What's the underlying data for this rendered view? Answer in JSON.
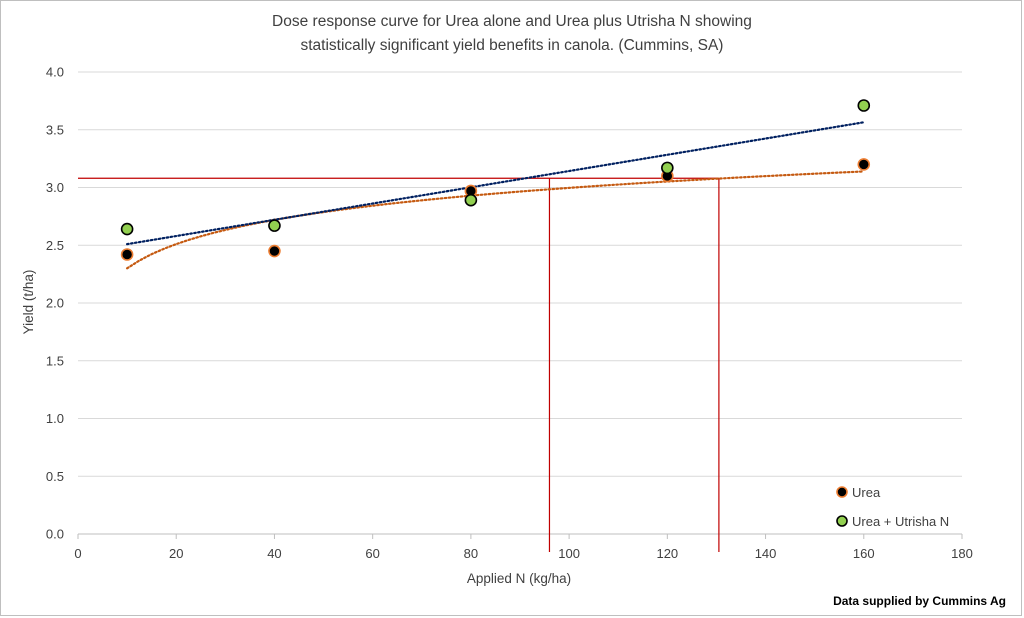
{
  "chart_data": {
    "type": "scatter",
    "title_lines": [
      "Dose response curve for Urea alone and Urea plus Utrisha N showing",
      "statistically significant yield benefits in canola. (Cummins, SA)"
    ],
    "xlabel": "Applied N (kg/ha)",
    "ylabel": "Yield (t/ha)",
    "xlim": [
      0,
      180
    ],
    "ylim": [
      0,
      4.0
    ],
    "x_ticks": [
      0,
      20,
      40,
      60,
      80,
      100,
      120,
      140,
      160,
      180
    ],
    "y_ticks": [
      "0.0",
      "0.5",
      "1.0",
      "1.5",
      "2.0",
      "2.5",
      "3.0",
      "3.5",
      "4.0"
    ],
    "grid": "horizontal",
    "legend_position": "bottom-right",
    "series": [
      {
        "name": "Urea",
        "marker_color": "#000000",
        "edge_color": "#ED7D31",
        "trendline": "logarithmic",
        "trend_color": "#C55A11",
        "x": [
          10,
          40,
          80,
          120,
          160
        ],
        "y": [
          2.42,
          2.45,
          2.97,
          3.1,
          3.2
        ]
      },
      {
        "name": "Urea + Utrisha N",
        "marker_color": "#92D050",
        "edge_color": "#000000",
        "trendline": "linear",
        "trend_color": "#002060",
        "x": [
          10,
          40,
          80,
          120,
          160
        ],
        "y": [
          2.64,
          2.67,
          2.89,
          3.17,
          3.71
        ]
      }
    ],
    "reference_lines": {
      "color": "#C00000",
      "yield_level": 3.08,
      "x_values": [
        96,
        130.5
      ]
    }
  },
  "credit": "Data supplied by Cummins Ag"
}
